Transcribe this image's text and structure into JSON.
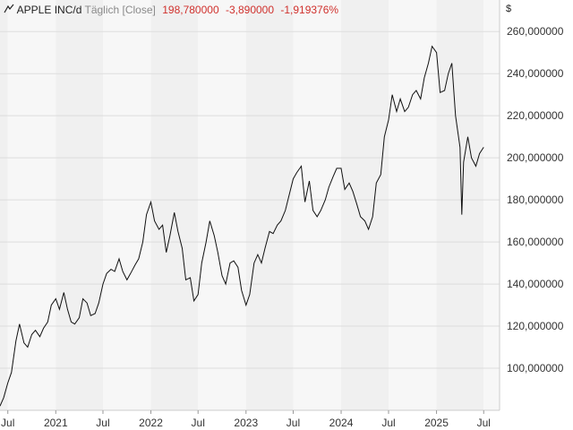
{
  "header": {
    "symbol": "APPLE INC/d",
    "mode": "Täglich [Close]",
    "last": "198,780000",
    "change": "-3,890000",
    "change_pct": "-1,919376%"
  },
  "currency": "$",
  "chart_data": {
    "type": "line",
    "ylim": [
      80,
      275
    ],
    "yticks": [
      "100,000000",
      "120,000000",
      "140,000000",
      "160,000000",
      "180,000000",
      "200,000000",
      "220,000000",
      "240,000000",
      "260,000000"
    ],
    "xticks": [
      "Jul",
      "2021",
      "Jul",
      "2022",
      "Jul",
      "2023",
      "Jul",
      "2024",
      "Jul",
      "2025",
      "Jul"
    ],
    "x_start": "2020-06-01",
    "x_end": "2025-08-31",
    "series": [
      {
        "x": [
          "2020-06-01",
          "2020-06-15",
          "2020-07-01",
          "2020-07-15",
          "2020-08-01",
          "2020-08-15",
          "2020-09-01",
          "2020-09-15",
          "2020-10-01",
          "2020-10-15",
          "2020-11-01",
          "2020-11-15",
          "2020-12-01",
          "2020-12-15",
          "2021-01-01",
          "2021-01-15",
          "2021-02-01",
          "2021-02-15",
          "2021-03-01",
          "2021-03-15",
          "2021-04-01",
          "2021-04-15",
          "2021-05-01",
          "2021-05-15",
          "2021-06-01",
          "2021-06-15",
          "2021-07-01",
          "2021-07-15",
          "2021-08-01",
          "2021-08-15",
          "2021-09-01",
          "2021-09-15",
          "2021-10-01",
          "2021-10-15",
          "2021-11-01",
          "2021-11-15",
          "2021-12-01",
          "2021-12-15",
          "2022-01-01",
          "2022-01-15",
          "2022-02-01",
          "2022-02-15",
          "2022-03-01",
          "2022-03-15",
          "2022-04-01",
          "2022-04-15",
          "2022-05-01",
          "2022-05-15",
          "2022-06-01",
          "2022-06-15",
          "2022-07-01",
          "2022-07-15",
          "2022-08-01",
          "2022-08-15",
          "2022-09-01",
          "2022-09-15",
          "2022-10-01",
          "2022-10-15",
          "2022-11-01",
          "2022-11-15",
          "2022-12-01",
          "2022-12-15",
          "2023-01-01",
          "2023-01-15",
          "2023-02-01",
          "2023-02-15",
          "2023-03-01",
          "2023-03-15",
          "2023-04-01",
          "2023-04-15",
          "2023-05-01",
          "2023-05-15",
          "2023-06-01",
          "2023-06-15",
          "2023-07-01",
          "2023-07-15",
          "2023-08-01",
          "2023-08-15",
          "2023-09-01",
          "2023-09-15",
          "2023-10-01",
          "2023-10-15",
          "2023-11-01",
          "2023-11-15",
          "2023-12-01",
          "2023-12-15",
          "2024-01-01",
          "2024-01-15",
          "2024-02-01",
          "2024-02-15",
          "2024-03-01",
          "2024-03-15",
          "2024-04-01",
          "2024-04-15",
          "2024-05-01",
          "2024-05-15",
          "2024-06-01",
          "2024-06-15",
          "2024-07-01",
          "2024-07-15",
          "2024-08-01",
          "2024-08-15",
          "2024-09-01",
          "2024-09-15",
          "2024-10-01",
          "2024-10-15",
          "2024-11-01",
          "2024-11-15",
          "2024-12-01",
          "2024-12-15",
          "2025-01-01",
          "2025-01-15",
          "2025-02-01",
          "2025-02-15",
          "2025-03-01",
          "2025-03-15",
          "2025-04-01",
          "2025-04-08",
          "2025-04-15",
          "2025-05-01",
          "2025-05-15",
          "2025-06-01",
          "2025-06-15",
          "2025-07-01"
        ],
        "values": [
          82,
          86,
          93,
          98,
          113,
          121,
          112,
          110,
          116,
          118,
          115,
          119,
          122,
          130,
          133,
          128,
          136,
          128,
          122,
          121,
          124,
          133,
          131,
          125,
          126,
          131,
          140,
          145,
          147,
          146,
          152,
          146,
          142,
          145,
          149,
          152,
          160,
          173,
          179,
          170,
          166,
          168,
          155,
          163,
          174,
          165,
          157,
          142,
          143,
          132,
          135,
          150,
          160,
          170,
          163,
          155,
          144,
          140,
          150,
          151,
          148,
          137,
          130,
          135,
          150,
          154,
          150,
          157,
          165,
          164,
          168,
          170,
          175,
          182,
          190,
          193,
          196,
          179,
          189,
          175,
          172,
          175,
          180,
          186,
          191,
          195,
          195,
          185,
          188,
          184,
          178,
          172,
          170,
          166,
          172,
          188,
          192,
          210,
          218,
          230,
          222,
          228,
          222,
          224,
          230,
          232,
          228,
          238,
          245,
          253,
          250,
          231,
          232,
          240,
          245,
          220,
          205,
          173,
          198,
          210,
          200,
          196,
          202,
          205
        ]
      }
    ]
  }
}
